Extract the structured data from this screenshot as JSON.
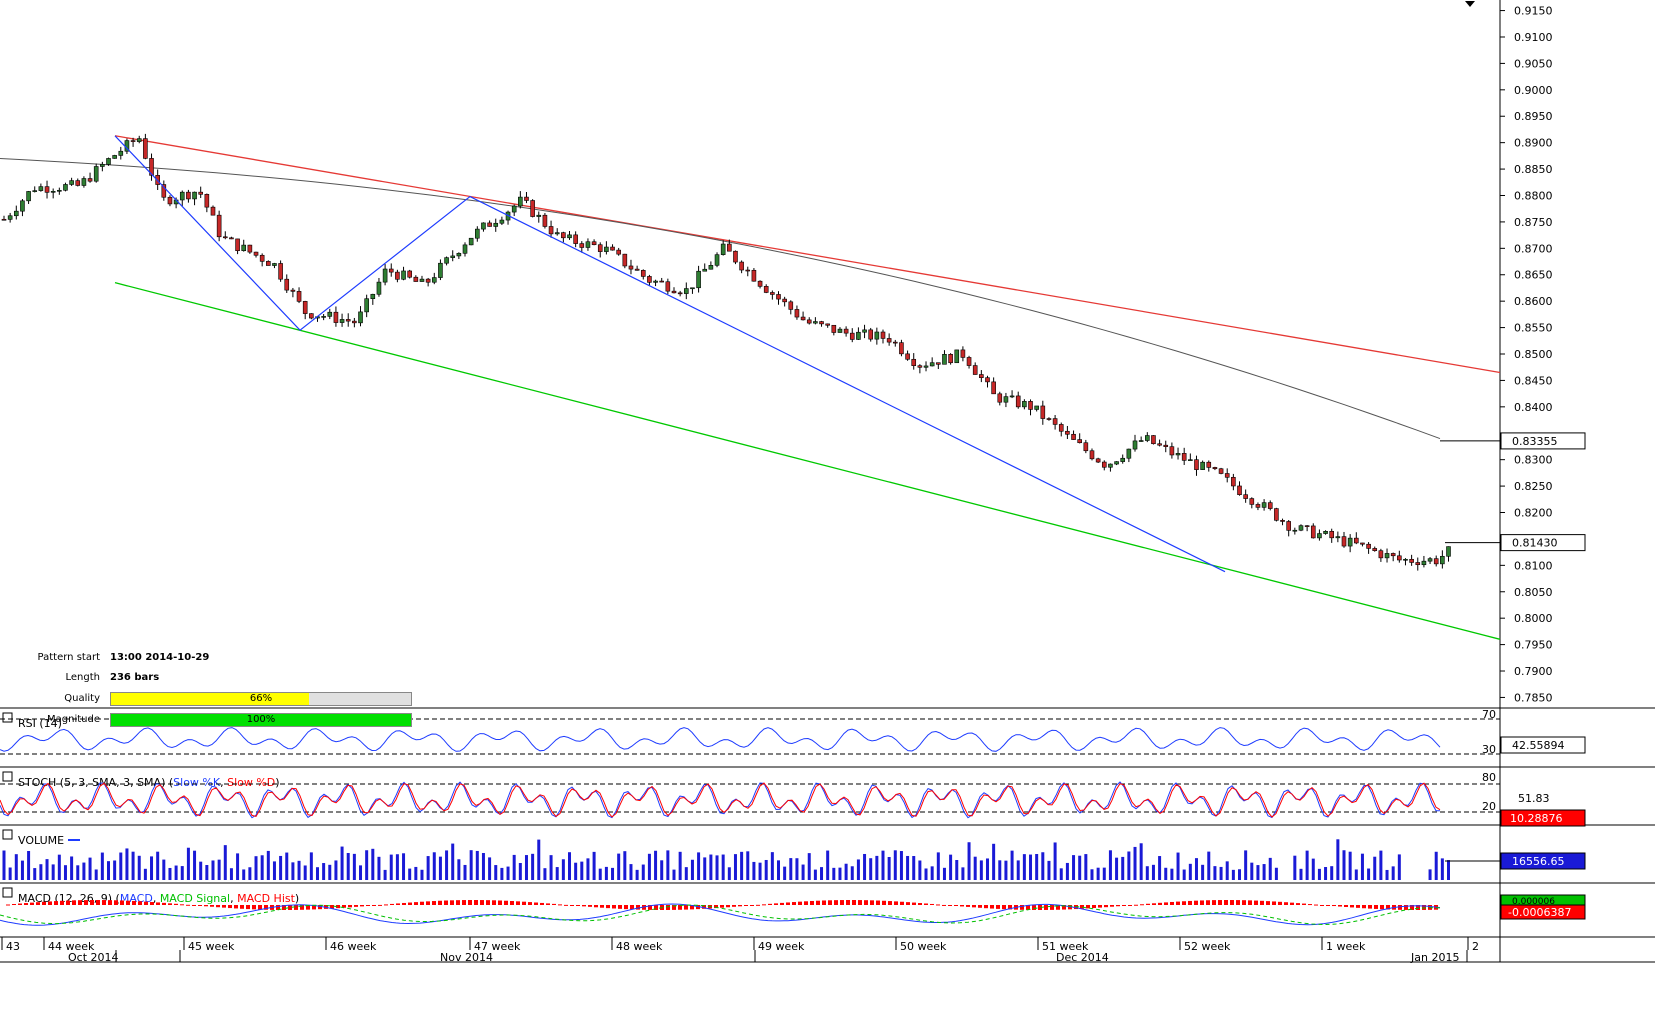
{
  "chart_data": {
    "type": "candlestick",
    "price_axis": {
      "range": [
        0.783,
        0.917
      ],
      "ticks": [
        "0.9150",
        "0.9100",
        "0.9050",
        "0.9000",
        "0.8950",
        "0.8900",
        "0.8850",
        "0.8800",
        "0.8750",
        "0.8700",
        "0.8650",
        "0.8600",
        "0.8550",
        "0.8500",
        "0.8450",
        "0.8400",
        "0.8300",
        "0.8250",
        "0.8200",
        "0.8100",
        "0.8050",
        "0.8000",
        "0.7950",
        "0.7900",
        "0.7850"
      ]
    },
    "current_price": "0.81430",
    "ma_value": "0.83355",
    "pattern": {
      "upper_line": [
        [
          0.0,
          0.8913
        ],
        [
          1.0,
          0.8465
        ]
      ],
      "lower_line": [
        [
          0.0,
          0.8635
        ],
        [
          1.0,
          0.796
        ]
      ],
      "zigzag": [
        [
          0.0,
          0.8913
        ],
        [
          0.145,
          0.8545
        ],
        [
          0.285,
          0.8798
        ],
        [
          0.875,
          0.8088
        ]
      ]
    },
    "price_path": [
      [
        0,
        0.8755
      ],
      [
        0.02,
        0.8815
      ],
      [
        0.05,
        0.8818
      ],
      [
        0.075,
        0.888
      ],
      [
        0.09,
        0.891
      ],
      [
        0.105,
        0.879
      ],
      [
        0.13,
        0.881
      ],
      [
        0.145,
        0.872
      ],
      [
        0.18,
        0.867
      ],
      [
        0.2,
        0.858
      ],
      [
        0.235,
        0.856
      ],
      [
        0.255,
        0.866
      ],
      [
        0.28,
        0.863
      ],
      [
        0.31,
        0.872
      ],
      [
        0.345,
        0.879
      ],
      [
        0.37,
        0.872
      ],
      [
        0.4,
        0.87
      ],
      [
        0.43,
        0.864
      ],
      [
        0.455,
        0.862
      ],
      [
        0.48,
        0.87
      ],
      [
        0.51,
        0.862
      ],
      [
        0.535,
        0.856
      ],
      [
        0.56,
        0.854
      ],
      [
        0.59,
        0.853
      ],
      [
        0.61,
        0.848
      ],
      [
        0.64,
        0.85
      ],
      [
        0.66,
        0.842
      ],
      [
        0.685,
        0.84
      ],
      [
        0.71,
        0.834
      ],
      [
        0.735,
        0.829
      ],
      [
        0.76,
        0.834
      ],
      [
        0.78,
        0.831
      ],
      [
        0.81,
        0.827
      ],
      [
        0.835,
        0.822
      ],
      [
        0.86,
        0.817
      ],
      [
        0.875,
        0.816
      ],
      [
        0.9,
        0.814
      ],
      [
        0.93,
        0.811
      ],
      [
        0.955,
        0.811
      ],
      [
        0.975,
        0.815
      ],
      [
        1.0,
        0.814
      ]
    ],
    "x_axis": {
      "week_labels": [
        "43",
        "44 week",
        "45 week",
        "46 week",
        "47 week",
        "48 week",
        "49 week",
        "50 week",
        "51 week",
        "52 week",
        "1 week",
        "2"
      ],
      "month_labels": [
        "Oct 2014",
        "Nov 2014",
        "Dec 2014",
        "Jan 2015"
      ]
    },
    "indicators": {
      "rsi": {
        "label": "RSI (14)",
        "levels": [
          "70",
          "30"
        ],
        "value": "42.55894"
      },
      "stoch": {
        "label": "STOCH (5, 3, SMA, 3, SMA)",
        "k_label": "Slow %K",
        "d_label": "Slow %D",
        "levels": [
          "80",
          "20"
        ],
        "value1": "51.83",
        "value2": "10.28876"
      },
      "volume": {
        "label": "VOLUME",
        "value": "16556.65"
      },
      "macd": {
        "label": "MACD (12, 26, 9)",
        "line_label": "MACD",
        "signal_label": "MACD Signal",
        "hist_label": "MACD Hist",
        "value1": "0.000006",
        "value2": "-0.0006387"
      }
    },
    "colors": {
      "up": "#2e7d32",
      "down": "#c62828",
      "upper_line": "#e53935",
      "lower_line": "#00c800",
      "zigzag": "#1e3cff",
      "ma": "#555555",
      "volume": "#1a1ad6",
      "macd_hist": "#ff0000",
      "signal": "#00c000"
    }
  },
  "pattern_info": {
    "start_label": "Pattern start",
    "start_value": "13:00 2014-10-29",
    "length_label": "Length",
    "length_value": "236 bars",
    "quality_label": "Quality",
    "quality_value": "66%",
    "quality": 0.66,
    "magnitude_label": "Magnitude",
    "magnitude_value": "100%",
    "magnitude": 1.0
  }
}
